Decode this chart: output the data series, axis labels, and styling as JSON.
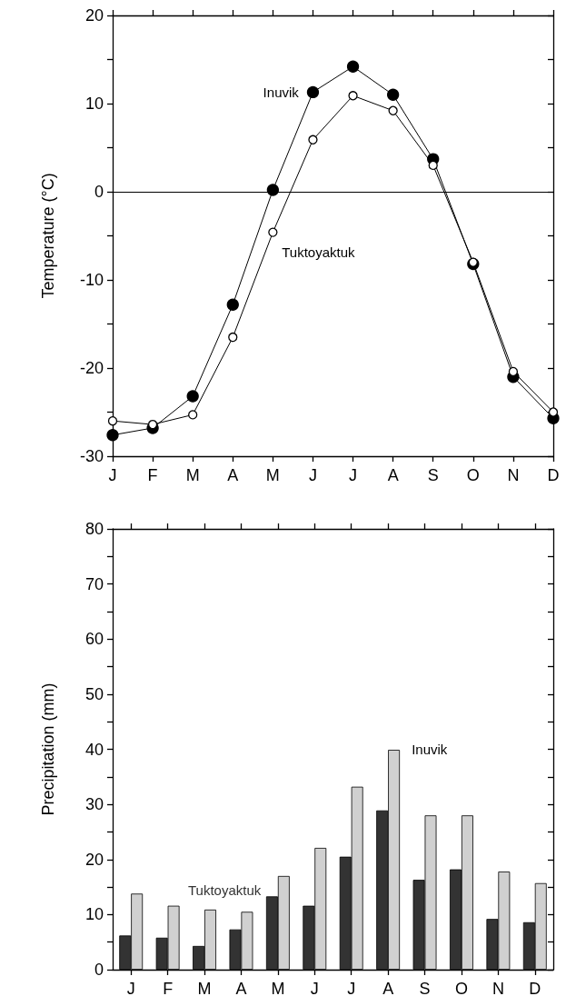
{
  "chart_data": [
    {
      "type": "line",
      "categories": [
        "J",
        "F",
        "M",
        "A",
        "M",
        "J",
        "J",
        "A",
        "S",
        "O",
        "N",
        "D"
      ],
      "ylabel": "Temperature (°C)",
      "ylim": [
        -30,
        20
      ],
      "yticks": [
        -30,
        {
          "value": -25,
          "label": null
        },
        -20,
        {
          "value": -15,
          "label": null
        },
        -10,
        {
          "value": -5,
          "label": null
        },
        0,
        {
          "value": 5,
          "label": null
        },
        10,
        {
          "value": 15,
          "label": null
        },
        20
      ],
      "marker": "circle",
      "line_style": "solid",
      "grid": false,
      "legend": false,
      "ref_lines": [
        {
          "axis": "y",
          "value": 0,
          "color": "#000000"
        }
      ],
      "series": [
        {
          "name": "Inuvik",
          "color": "#000000",
          "values": [
            -27.6,
            -26.8,
            -23.2,
            -12.8,
            0.2,
            11.3,
            14.2,
            11.0,
            3.7,
            -8.2,
            -21.0,
            -25.7
          ]
        },
        {
          "name": "Tuktoyaktuk",
          "color": "#000000",
          "values": [
            -26.0,
            -26.4,
            -25.3,
            -16.5,
            -4.6,
            5.9,
            10.9,
            9.2,
            3.0,
            -8.0,
            -20.4,
            -25.0
          ]
        }
      ]
    },
    {
      "type": "bar",
      "categories": [
        "J",
        "F",
        "M",
        "A",
        "M",
        "J",
        "J",
        "A",
        "S",
        "O",
        "N",
        "D"
      ],
      "ylabel": "Precipitation (mm)",
      "ylim": [
        0,
        80
      ],
      "yticks": [
        0,
        {
          "value": 5,
          "label": null
        },
        10,
        {
          "value": 15,
          "label": null
        },
        20,
        {
          "value": 25,
          "label": null
        },
        30,
        {
          "value": 35,
          "label": null
        },
        40,
        {
          "value": 45,
          "label": null
        },
        50,
        {
          "value": 55,
          "label": null
        },
        60,
        {
          "value": 65,
          "label": null
        },
        70,
        {
          "value": 75,
          "label": null
        },
        80
      ],
      "grid": false,
      "legend": false,
      "series": [
        {
          "name": "Tuktoyaktuk",
          "color": "#333333",
          "values": [
            6.2,
            5.8,
            4.3,
            7.3,
            13.3,
            11.6,
            20.5,
            28.9,
            16.3,
            18.2,
            9.2,
            8.6
          ]
        },
        {
          "name": "Inuvik",
          "color": "#d0d0d0",
          "values": [
            13.8,
            11.6,
            10.9,
            10.5,
            17.0,
            22.1,
            33.2,
            39.9,
            28.0,
            28.0,
            17.8,
            15.7
          ]
        }
      ]
    }
  ]
}
